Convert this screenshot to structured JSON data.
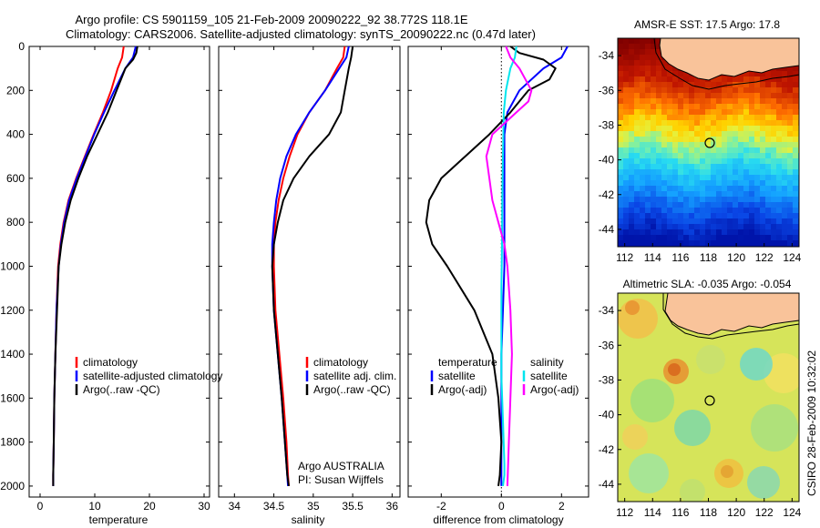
{
  "title": {
    "line1": "Argo profile: CS 5901159_105 21-Feb-2009 20090222_92 38.772S 118.1E",
    "line2": "Climatology: CARS2006. Satellite-adjusted climatology: synTS_20090222.nc (0.47d later)"
  },
  "colors": {
    "climatology": "#ff0000",
    "satellite": "#0000ff",
    "argo": "#000000",
    "salinity_diff": "#00e5ee",
    "salinity_argo_diff": "#ff00ff",
    "land": "#f9c39a"
  },
  "depth_ticks": [
    "0",
    "200",
    "400",
    "600",
    "800",
    "1000",
    "1200",
    "1400",
    "1600",
    "1800",
    "2000"
  ],
  "chart_data": [
    {
      "type": "line",
      "id": "temperature",
      "xlabel": "temperature",
      "xlim": [
        -2,
        31
      ],
      "xticks": [
        "0",
        "10",
        "20",
        "30"
      ],
      "ylim": [
        0,
        2050
      ],
      "legend": [
        "climatology",
        "satellite-adjusted climatology",
        "Argo(..raw -QC)"
      ],
      "series": [
        {
          "name": "climatology",
          "color": "#ff0000",
          "x": [
            15.3,
            15.0,
            14.2,
            13.0,
            11.5,
            9.8,
            8.2,
            6.6,
            5.2,
            4.3,
            3.7,
            3.3,
            3.0,
            2.8,
            2.6,
            2.5,
            2.4,
            2.4
          ],
          "y": [
            0,
            50,
            100,
            200,
            300,
            400,
            500,
            600,
            700,
            800,
            900,
            1000,
            1200,
            1400,
            1600,
            1800,
            1950,
            2000
          ]
        },
        {
          "name": "satellite-adjusted climatology",
          "color": "#0000ff",
          "x": [
            17.5,
            17.0,
            15.6,
            13.6,
            11.7,
            9.9,
            8.3,
            6.7,
            5.3,
            4.4,
            3.8,
            3.4,
            3.0,
            2.8,
            2.6,
            2.5,
            2.4,
            2.4
          ],
          "y": [
            0,
            50,
            100,
            200,
            300,
            400,
            500,
            600,
            700,
            800,
            900,
            1000,
            1200,
            1400,
            1600,
            1800,
            1950,
            2000
          ]
        },
        {
          "name": "Argo(..raw -QC)",
          "color": "#000000",
          "x": [
            17.8,
            17.6,
            17.0,
            15.6,
            14.8,
            14.0,
            12.4,
            10.5,
            8.6,
            7.0,
            5.6,
            4.6,
            3.9,
            3.4,
            3.1,
            2.8,
            2.6,
            2.5,
            2.4,
            2.4
          ],
          "y": [
            0,
            30,
            60,
            100,
            150,
            200,
            300,
            400,
            500,
            600,
            700,
            800,
            900,
            1000,
            1200,
            1400,
            1600,
            1800,
            1950,
            2000
          ]
        }
      ]
    },
    {
      "type": "line",
      "id": "salinity",
      "xlabel": "salinity",
      "xlim": [
        33.8,
        36.1
      ],
      "xticks": [
        "34",
        "34.5",
        "35",
        "35.5",
        "36"
      ],
      "ylim": [
        0,
        2050
      ],
      "legend": [
        "climatology",
        "satellite adj. clim.",
        "Argo(..raw -QC)"
      ],
      "annotation": [
        "Argo AUSTRALIA",
        "PI: Susan Wijffels"
      ],
      "series": [
        {
          "name": "climatology",
          "color": "#ff0000",
          "x": [
            35.4,
            35.38,
            35.3,
            35.15,
            34.95,
            34.8,
            34.7,
            34.62,
            34.56,
            34.52,
            34.5,
            34.5,
            34.52,
            34.57,
            34.62,
            34.66,
            34.68,
            34.69
          ],
          "y": [
            0,
            50,
            100,
            200,
            300,
            400,
            500,
            600,
            700,
            800,
            900,
            1000,
            1200,
            1400,
            1600,
            1800,
            1950,
            2000
          ]
        },
        {
          "name": "satellite adj. clim.",
          "color": "#0000ff",
          "x": [
            35.45,
            35.42,
            35.33,
            35.15,
            34.95,
            34.78,
            34.66,
            34.58,
            34.53,
            34.5,
            34.48,
            34.48,
            34.5,
            34.55,
            34.6,
            34.64,
            34.67,
            34.68
          ],
          "y": [
            0,
            50,
            100,
            200,
            300,
            400,
            500,
            600,
            700,
            800,
            900,
            1000,
            1200,
            1400,
            1600,
            1800,
            1950,
            2000
          ]
        },
        {
          "name": "Argo(..raw -QC)",
          "color": "#000000",
          "x": [
            35.5,
            35.48,
            35.45,
            35.4,
            35.35,
            35.2,
            34.95,
            34.75,
            34.62,
            34.55,
            34.5,
            34.48,
            34.5,
            34.55,
            34.6,
            34.64,
            34.67,
            34.69
          ],
          "y": [
            0,
            50,
            100,
            200,
            300,
            400,
            500,
            600,
            700,
            800,
            900,
            1000,
            1200,
            1400,
            1600,
            1800,
            1950,
            2000
          ]
        }
      ]
    },
    {
      "type": "line",
      "id": "difference",
      "xlabel": "difference from climatology",
      "xlim": [
        -3.1,
        2.9
      ],
      "xticks": [
        "-2",
        "0",
        "2"
      ],
      "ylim": [
        0,
        2050
      ],
      "legend_temperature": [
        "temperature",
        "satellite",
        "Argo(-adj)"
      ],
      "legend_salinity": [
        "salinity",
        "satellite",
        "Argo(-adj)"
      ],
      "series": [
        {
          "name": "temperature satellite",
          "color": "#0000ff",
          "x": [
            2.2,
            2.0,
            1.4,
            0.6,
            0.2,
            0.1,
            0.1,
            0.1,
            0.1,
            0.1,
            0.1,
            0.1,
            0.05,
            0.0,
            0.0,
            0.0,
            0.0,
            0.0
          ],
          "y": [
            0,
            50,
            100,
            200,
            300,
            400,
            500,
            600,
            700,
            800,
            900,
            1000,
            1200,
            1400,
            1600,
            1800,
            1950,
            2000
          ]
        },
        {
          "name": "temperature Argo(-adj)",
          "color": "#000000",
          "x": [
            0.3,
            0.6,
            1.4,
            1.8,
            1.6,
            0.9,
            0.3,
            -0.4,
            -1.2,
            -2.0,
            -2.4,
            -2.5,
            -2.3,
            -1.8,
            -0.9,
            -0.3,
            -0.1,
            0.0,
            -0.05,
            -0.1
          ],
          "y": [
            0,
            30,
            60,
            100,
            150,
            200,
            300,
            400,
            500,
            600,
            700,
            800,
            900,
            1000,
            1200,
            1400,
            1600,
            1800,
            1950,
            2000
          ]
        },
        {
          "name": "salinity satellite",
          "color": "#00e5ee",
          "x": [
            0.5,
            0.45,
            0.3,
            0.15,
            0.08,
            0.05,
            0.03,
            0.02,
            0.0,
            0.0,
            0.0,
            0.05,
            0.1,
            0.1,
            0.05
          ],
          "y": [
            0,
            50,
            100,
            200,
            300,
            500,
            700,
            900,
            1100,
            1300,
            1500,
            1700,
            1900,
            1950,
            2000
          ]
        },
        {
          "name": "salinity Argo(-adj)",
          "color": "#ff00ff",
          "x": [
            0.15,
            0.3,
            0.6,
            1.0,
            0.9,
            0.5,
            -0.3,
            -0.5,
            -0.4,
            -0.3,
            -0.1,
            0.1,
            0.2,
            0.3,
            0.35,
            0.3,
            0.25,
            0.2
          ],
          "y": [
            0,
            50,
            100,
            200,
            250,
            300,
            400,
            500,
            600,
            700,
            800,
            900,
            1000,
            1200,
            1400,
            1600,
            1800,
            2000
          ]
        }
      ]
    },
    {
      "type": "heatmap",
      "id": "sst-map",
      "title": "AMSR-E SST: 17.5 Argo: 17.8",
      "xlim": [
        111.5,
        124.5
      ],
      "ylim": [
        -45,
        -33
      ],
      "xticks": [
        "112",
        "114",
        "116",
        "118",
        "120",
        "122",
        "124"
      ],
      "yticks": [
        "-34",
        "-36",
        "-38",
        "-40",
        "-42",
        "-44"
      ],
      "argo_position": {
        "lon": 118.1,
        "lat": -38.772
      }
    },
    {
      "type": "heatmap",
      "id": "sla-map",
      "title": "Altimetric SLA: -0.035 Argo: -0.054",
      "xlim": [
        111.5,
        124.5
      ],
      "ylim": [
        -45,
        -33
      ],
      "xticks": [
        "112",
        "114",
        "116",
        "118",
        "120",
        "122",
        "124"
      ],
      "yticks": [
        "-34",
        "-36",
        "-38",
        "-40",
        "-42",
        "-44"
      ],
      "argo_position": {
        "lon": 118.1,
        "lat": -38.772
      }
    }
  ],
  "stamp": "CSIRO 28-Feb-2009 10:32:02"
}
